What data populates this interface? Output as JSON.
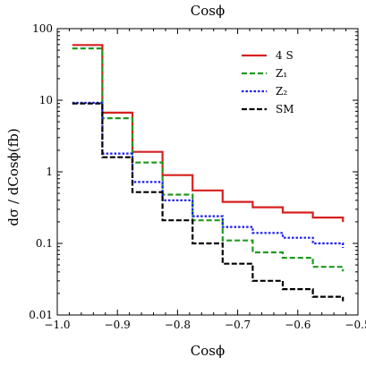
{
  "chart_data": {
    "type": "line",
    "title": "Cosϕ",
    "xlabel": "Cosϕ",
    "ylabel": "dσ / dCosϕ(fb)",
    "xlim": [
      -1.0,
      -0.5
    ],
    "ylim": [
      0.01,
      100
    ],
    "yscale": "log",
    "step": true,
    "x_ticks": [
      -1.0,
      -0.9,
      -0.8,
      -0.7,
      -0.6,
      -0.5
    ],
    "x_tick_labels": [
      "−1.0",
      "−0.9",
      "−0.8",
      "−0.7",
      "−0.6",
      "−0.5"
    ],
    "y_ticks": [
      0.01,
      0.1,
      1,
      10,
      100
    ],
    "y_tick_labels": [
      "0.01",
      "0.1",
      "1",
      "10",
      "100"
    ],
    "legend_position": "top-right",
    "bin_edges": [
      -0.975,
      -0.925,
      -0.875,
      -0.825,
      -0.775,
      -0.725,
      -0.675,
      -0.625,
      -0.575,
      -0.525
    ],
    "series": [
      {
        "name": "4 S",
        "color": "#d62020",
        "dash": "solid",
        "values": [
          59,
          6.7,
          1.9,
          0.9,
          0.55,
          0.38,
          0.32,
          0.27,
          0.23
        ]
      },
      {
        "name": "Z₁",
        "color": "#1f9a1f",
        "dash": "dashed",
        "values": [
          53,
          5.6,
          1.35,
          0.48,
          0.21,
          0.11,
          0.075,
          0.063,
          0.047
        ]
      },
      {
        "name": "Z₂",
        "color": "#1a1aee",
        "dash": "dotted",
        "values": [
          9.2,
          1.8,
          0.72,
          0.4,
          0.24,
          0.17,
          0.14,
          0.12,
          0.1
        ]
      },
      {
        "name": "SM",
        "color": "#000000",
        "dash": "dashdot",
        "values": [
          9.0,
          1.6,
          0.52,
          0.21,
          0.1,
          0.052,
          0.03,
          0.023,
          0.018
        ]
      }
    ]
  }
}
